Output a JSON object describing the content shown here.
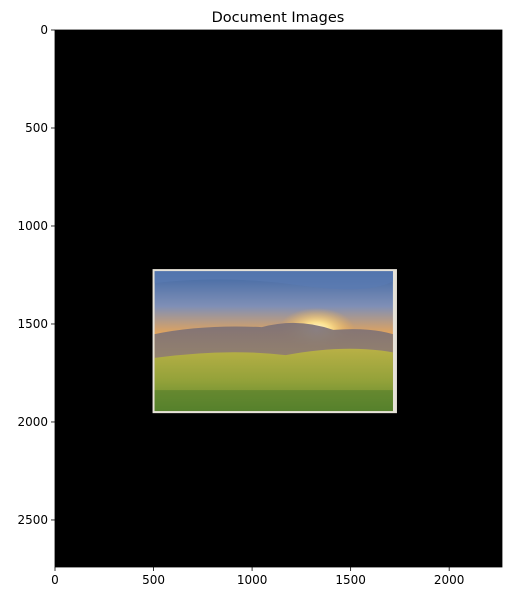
{
  "chart_data": {
    "type": "image",
    "title": "Document Images",
    "xlim": [
      0,
      2268
    ],
    "ylim": [
      2740,
      0
    ],
    "x_ticks": [
      0,
      500,
      1000,
      1500,
      2000
    ],
    "y_ticks": [
      0,
      500,
      1000,
      1500,
      2000,
      2500
    ],
    "grid": false,
    "background_color": "#000000",
    "document": {
      "description": "photo print of a sunrise over grassy hills",
      "corners": [
        [
          495,
          1220
        ],
        [
          1735,
          1220
        ],
        [
          1735,
          1955
        ],
        [
          495,
          1955
        ]
      ],
      "border_color": "#e6e2d8"
    },
    "colors": {
      "sky_top": "#4a6fa8",
      "sky_glow": "#f3b64a",
      "sun": "#fff4c2",
      "hills": "#6f6a6a",
      "grass": "#a3a23a"
    }
  }
}
